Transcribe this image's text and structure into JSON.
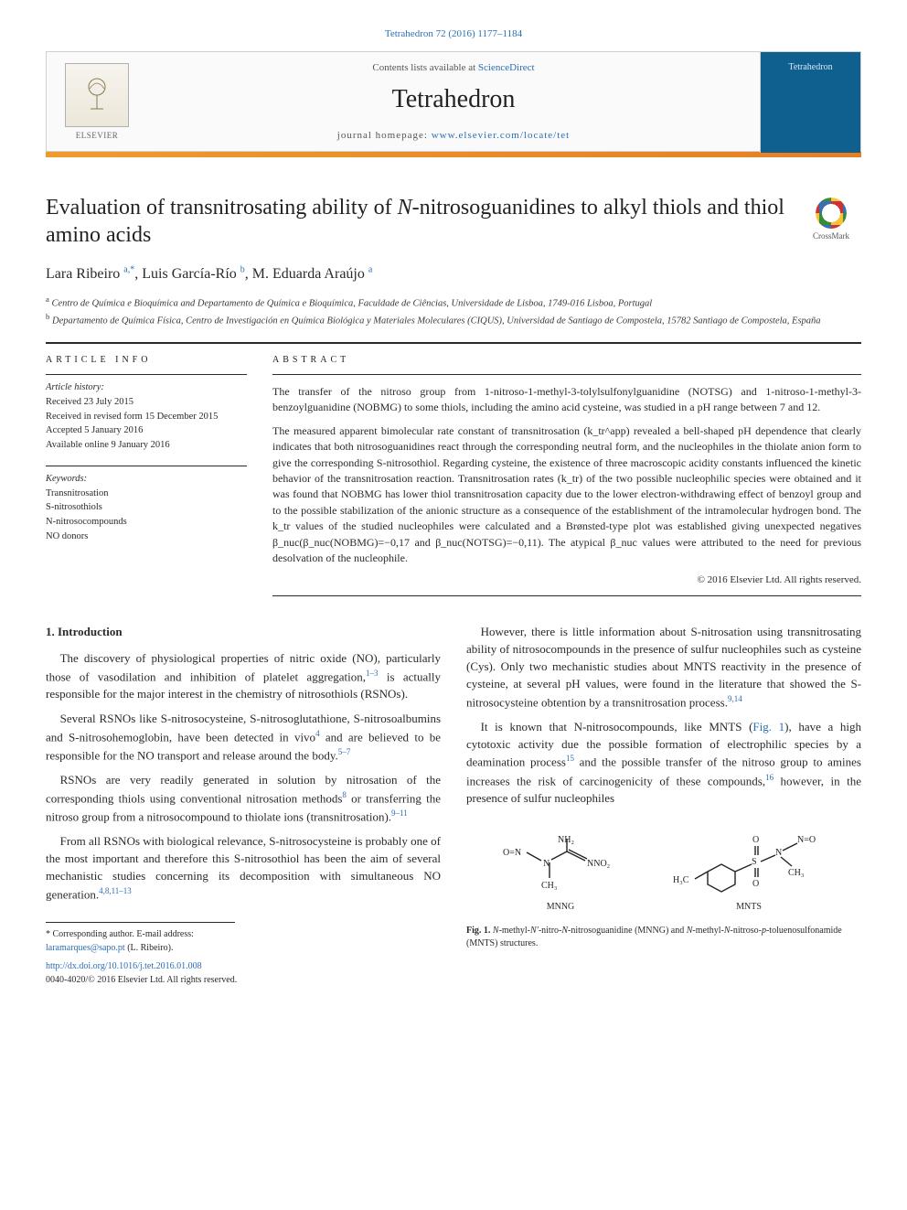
{
  "citation_line": "Tetrahedron 72 (2016) 1177–1184",
  "banner": {
    "contents_pre": "Contents lists available at ",
    "contents_link": "ScienceDirect",
    "journal": "Tetrahedron",
    "homepage_pre": "journal homepage: ",
    "homepage_link": "www.elsevier.com/locate/tet",
    "publisher_wordmark": "ELSEVIER",
    "cover_label": "Tetrahedron"
  },
  "title_html": "Evaluation of transnitrosating ability of <em>N</em>-nitrosoguanidines to alkyl thiols and thiol amino acids",
  "crossmark_label": "CrossMark",
  "authors_html": "Lara Ribeiro <sup>a,*</sup>, Luis García-Río <sup>b</sup>, M. Eduarda Araújo <sup>a</sup>",
  "affiliations": {
    "a": "Centro de Química e Bioquímica and Departamento de Química e Bioquímica, Faculdade de Ciências, Universidade de Lisboa, 1749-016 Lisboa, Portugal",
    "b": "Departamento de Química Física, Centro de Investigación en Química Biológica y Materiales Moleculares (CIQUS), Universidad de Santiago de Compostela, 15782 Santiago de Compostela, España"
  },
  "info": {
    "heading": "ARTICLE INFO",
    "history_head": "Article history:",
    "history": [
      "Received 23 July 2015",
      "Received in revised form 15 December 2015",
      "Accepted 5 January 2016",
      "Available online 9 January 2016"
    ],
    "keywords_head": "Keywords:",
    "keywords": [
      "Transnitrosation",
      "S-nitrosothiols",
      "N-nitrosocompounds",
      "NO donors"
    ]
  },
  "abstract": {
    "heading": "ABSTRACT",
    "paragraphs": [
      "The transfer of the nitroso group from 1-nitroso-1-methyl-3-tolylsulfonylguanidine (NOTSG) and 1-nitroso-1-methyl-3-benzoylguanidine (NOBMG) to some thiols, including the amino acid cysteine, was studied in a pH range between 7 and 12.",
      "The measured apparent bimolecular rate constant of transnitrosation (k_tr^app) revealed a bell-shaped pH dependence that clearly indicates that both nitrosoguanidines react through the corresponding neutral form, and the nucleophiles in the thiolate anion form to give the corresponding S-nitrosothiol. Regarding cysteine, the existence of three macroscopic acidity constants influenced the kinetic behavior of the transnitrosation reaction. Transnitrosation rates (k_tr) of the two possible nucleophilic species were obtained and it was found that NOBMG has lower thiol transnitrosation capacity due to the lower electron-withdrawing effect of benzoyl group and to the possible stabilization of the anionic structure as a consequence of the establishment of the intramolecular hydrogen bond. The k_tr values of the studied nucleophiles were calculated and a Brønsted-type plot was established giving unexpected negatives β_nuc(β_nuc(NOBMG)=−0,17 and β_nuc(NOTSG)=−0,11). The atypical β_nuc values were attributed to the need for previous desolvation of the nucleophile."
    ],
    "copyright": "© 2016 Elsevier Ltd. All rights reserved."
  },
  "section1": {
    "heading": "1. Introduction",
    "paras": [
      "The discovery of physiological properties of nitric oxide (NO), particularly those of vasodilation and inhibition of platelet aggregation,<sup class=\"ref\">1–3</sup> is actually responsible for the major interest in the chemistry of nitrosothiols (RSNOs).",
      "Several RSNOs like S-nitrosocysteine, S-nitrosoglutathione, S-nitrosoalbumins and S-nitrosohemoglobin, have been detected in vivo<sup class=\"ref\">4</sup> and are believed to be responsible for the NO transport and release around the body.<sup class=\"ref\">5–7</sup>",
      "RSNOs are very readily generated in solution by nitrosation of the corresponding thiols using conventional nitrosation methods<sup class=\"ref\">8</sup> or transferring the nitroso group from a nitrosocompound to thiolate ions (transnitrosation).<sup class=\"ref\">9–11</sup>",
      "From all RSNOs with biological relevance, S-nitrosocysteine is probably one of the most important and therefore this S-nitrosothiol has been the aim of several mechanistic studies concerning its decomposition with simultaneous NO generation.<sup class=\"ref\">4,8,11–13</sup>"
    ],
    "paras_right": [
      "However, there is little information about S-nitrosation using transnitrosating ability of nitrosocompounds in the presence of sulfur nucleophiles such as cysteine (Cys). Only two mechanistic studies about MNTS reactivity in the presence of cysteine, at several pH values, were found in the literature that showed the S-nitrosocysteine obtention by a transnitrosation process.<sup class=\"ref\">9,14</sup>",
      "It is known that N-nitrosocompounds, like MNTS (<a data-interactable=\"true\" data-name=\"fig1-link\">Fig. 1</a>), have a high cytotoxic activity due the possible formation of electrophilic species by a deamination process<sup class=\"ref\">15</sup> and the possible transfer of the nitroso group to amines increases the risk of carcinogenicity of these compounds,<sup class=\"ref\">16</sup> however, in the presence of sulfur nucleophiles"
    ]
  },
  "figure1": {
    "mol_left_label": "MNNG",
    "mol_right_label": "MNTS",
    "caption_html": "<b>Fig. 1.</b> <em>N</em>-methyl-<em>N'</em>-nitro-<em>N</em>-nitrosoguanidine (MNNG) and <em>N</em>-methyl-<em>N</em>-nitroso-<em>p</em>-toluenosulfonamide (MNTS) structures."
  },
  "footer": {
    "corresponding": "* Corresponding author. E-mail address: ",
    "corresponding_email": "laramarques@sapo.pt",
    "corresponding_suffix": " (L. Ribeiro).",
    "doi_link": "http://dx.doi.org/10.1016/j.tet.2016.01.008",
    "issn_line": "0040-4020/© 2016 Elsevier Ltd. All rights reserved."
  },
  "colors": {
    "accent_orange": "#e67e22",
    "link_blue": "#2a6fb5",
    "cover_blue": "#0f5f8f",
    "rule": "#2a2a2a"
  }
}
